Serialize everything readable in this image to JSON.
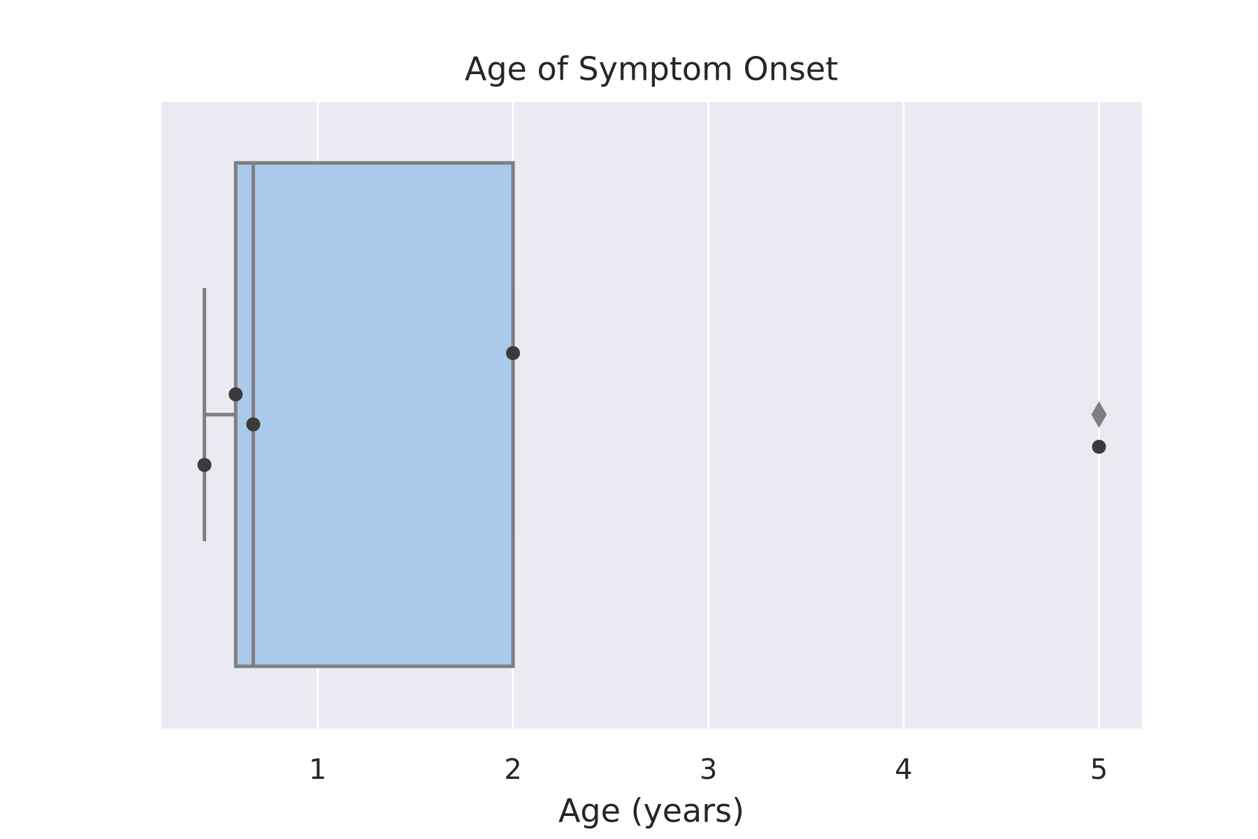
{
  "chart_data": {
    "type": "box",
    "title": "Age of Symptom Onset",
    "xlabel": "Age (years)",
    "xlim": [
      0.2,
      5.22
    ],
    "xticks": [
      1,
      2,
      3,
      4,
      5
    ],
    "grid": true,
    "color": "#abc9eb",
    "line_color": "#7f7f7f",
    "point_color": "#3b3b3b",
    "background": "#eaeaf2",
    "box": {
      "whislo": 0.42,
      "q1": 0.58,
      "med": 0.67,
      "q3": 2.0,
      "whishi": 2.0,
      "fliers": [
        5.0
      ]
    },
    "points": [
      0.42,
      0.58,
      0.67,
      2.0,
      5.0
    ]
  }
}
